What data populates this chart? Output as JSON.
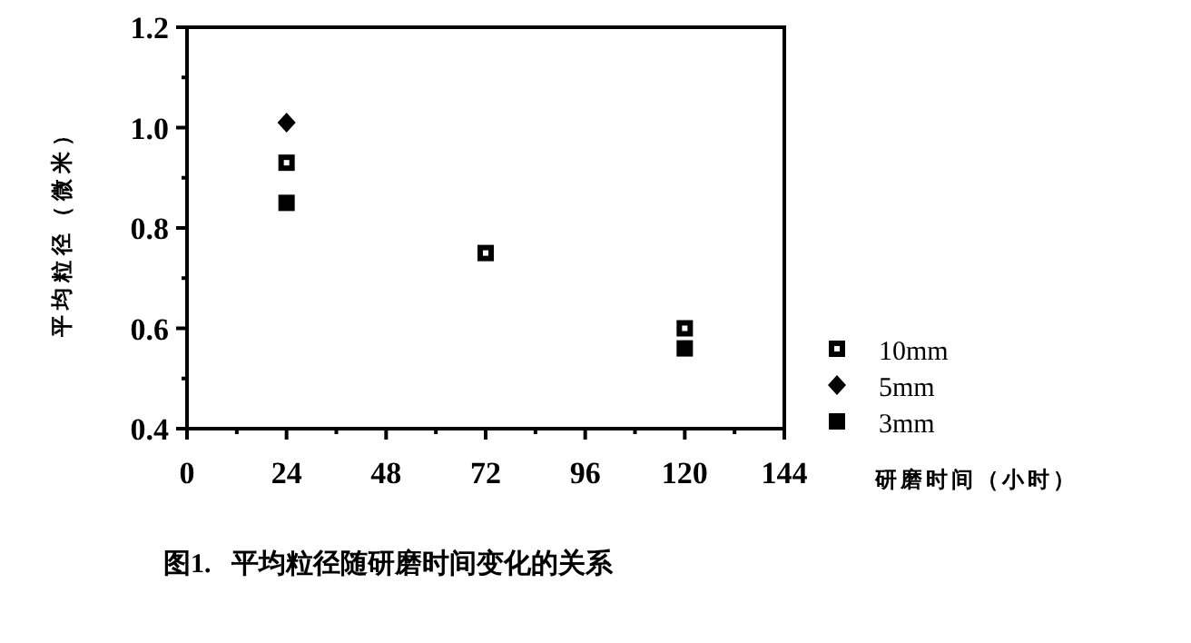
{
  "chart_data": {
    "type": "scatter",
    "xlabel": "研磨时间（小时）",
    "ylabel": "平均粒径（微米）",
    "annotations": [
      "图1.   平均粒径随研磨时间变化的关系"
    ],
    "x": [
      24,
      72,
      120
    ],
    "series": [
      {
        "name": "10mm",
        "color": "#000000",
        "marker": "square_open",
        "values": [
          0.93,
          0.75,
          0.6
        ]
      },
      {
        "name": "5mm",
        "color": "#000000",
        "marker": "diamond",
        "values": [
          1.01,
          null,
          null
        ]
      },
      {
        "name": "3mm",
        "color": "#000000",
        "marker": "square",
        "values": [
          0.85,
          null,
          0.56
        ]
      }
    ],
    "xlim": [
      0,
      144
    ],
    "xticks": [
      0,
      24,
      48,
      72,
      96,
      120,
      144
    ],
    "ylim": [
      0.4,
      1.2
    ],
    "yticks": [
      {
        "value": 0.4,
        "label": "0.4"
      },
      {
        "value": 0.6,
        "label": "0.6"
      },
      {
        "value": 0.8,
        "label": "0.8"
      },
      {
        "value": 1.0,
        "label": "1.0"
      },
      {
        "value": 1.2,
        "label": "1.2"
      }
    ],
    "grid": false,
    "legend": "right"
  }
}
